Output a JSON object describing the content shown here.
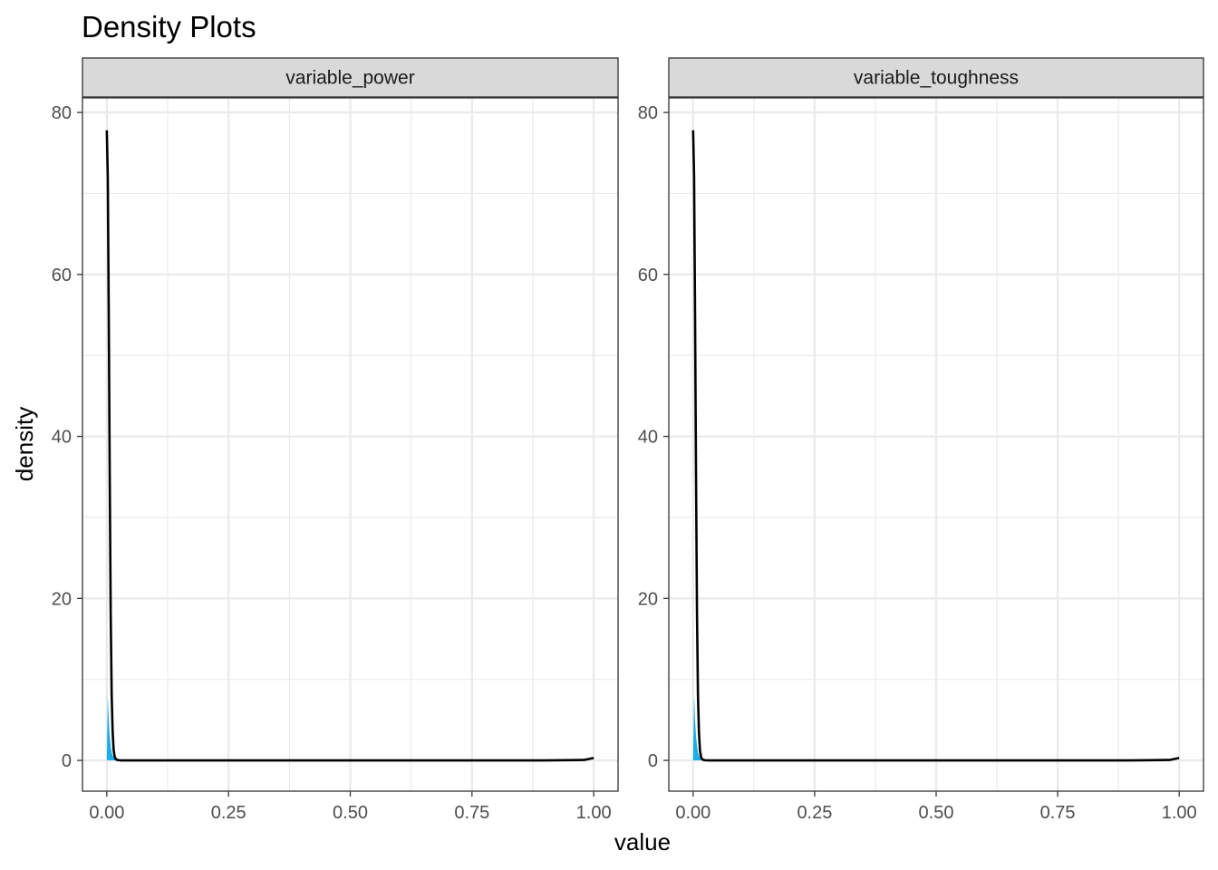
{
  "chart_data": {
    "type": "area",
    "title": "Density Plots",
    "xlabel": "value",
    "ylabel": "density",
    "xlim": [
      -0.05,
      1.05
    ],
    "ylim": [
      -3.8,
      81.8
    ],
    "x_ticks": [
      0,
      0.25,
      0.5,
      0.75,
      1
    ],
    "x_tick_labels": [
      "0.00",
      "0.25",
      "0.50",
      "0.75",
      "1.00"
    ],
    "y_ticks": [
      0,
      20,
      40,
      60,
      80
    ],
    "y_tick_labels": [
      "0",
      "20",
      "40",
      "60",
      "80"
    ],
    "grid": true,
    "legend": "none",
    "colors": {
      "fill": "#1aaee5",
      "line": "#000000",
      "strip_bg": "#d9d9d9",
      "grid": "#ebebeb",
      "panel_border": "#333333"
    },
    "panels": [
      {
        "facet": "variable_power",
        "density_line": {
          "x": [
            0,
            0.002,
            0.004,
            0.006,
            0.008,
            0.01,
            0.012,
            0.014,
            0.016,
            0.018,
            0.02,
            0.025,
            0.03,
            0.1,
            0.2,
            0.3,
            0.4,
            0.5,
            0.6,
            0.7,
            0.8,
            0.9,
            0.98,
            1.0
          ],
          "y": [
            77.8,
            72,
            55,
            35,
            18,
            8,
            3.5,
            1.3,
            0.5,
            0.2,
            0.08,
            0.02,
            0,
            0,
            0,
            0,
            0,
            0,
            0,
            0,
            0,
            0,
            0.05,
            0.3
          ]
        },
        "filled_region": {
          "x": [
            0,
            0.002,
            0.004,
            0.006,
            0.008,
            0.01,
            0.012,
            0.014,
            0.016,
            0.018,
            0.02
          ],
          "y": [
            0.3,
            8,
            5,
            3,
            1.8,
            1,
            0.6,
            0.35,
            0.2,
            0.1,
            0.05
          ]
        }
      },
      {
        "facet": "variable_toughness",
        "density_line": {
          "x": [
            0,
            0.002,
            0.004,
            0.006,
            0.008,
            0.01,
            0.012,
            0.014,
            0.016,
            0.018,
            0.02,
            0.025,
            0.03,
            0.1,
            0.2,
            0.3,
            0.4,
            0.5,
            0.6,
            0.7,
            0.8,
            0.9,
            0.98,
            1.0
          ],
          "y": [
            77.8,
            72,
            55,
            35,
            18,
            8,
            3.5,
            1.3,
            0.5,
            0.2,
            0.08,
            0.02,
            0,
            0,
            0,
            0,
            0,
            0,
            0,
            0,
            0,
            0,
            0.05,
            0.3
          ]
        },
        "filled_region": {
          "x": [
            0,
            0.002,
            0.004,
            0.006,
            0.008,
            0.01,
            0.012,
            0.014,
            0.016,
            0.018,
            0.02
          ],
          "y": [
            0.3,
            8,
            5,
            3,
            1.8,
            1,
            0.6,
            0.35,
            0.2,
            0.1,
            0.05
          ]
        }
      }
    ]
  }
}
